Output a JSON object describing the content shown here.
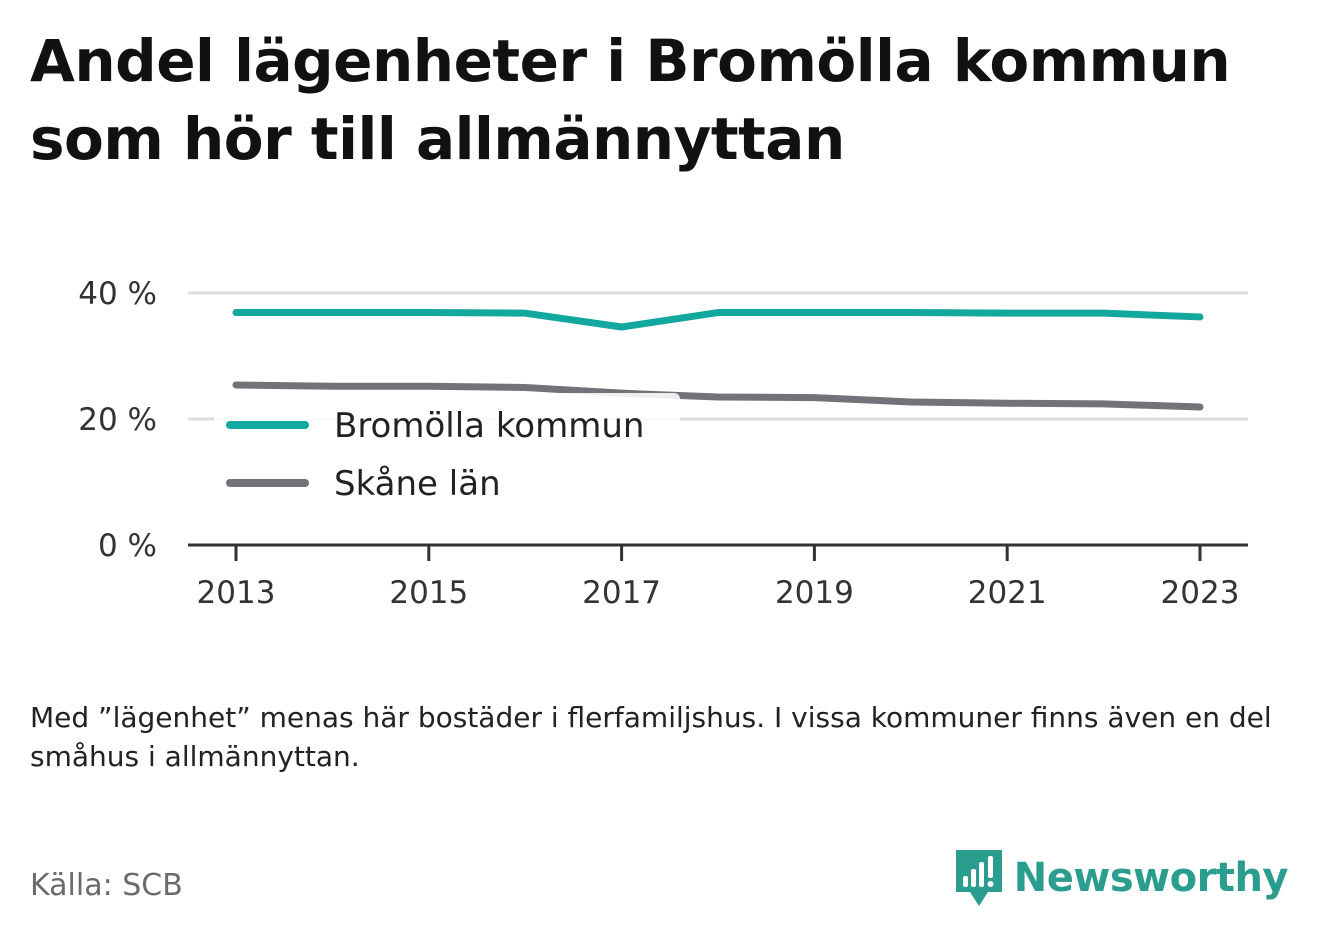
{
  "title": "Andel lägenheter i Bromölla kommun som hör till allmännyttan",
  "note": "Med ”lägenhet” menas här bostäder i flerfamiljshus. I vissa kommuner finns även en del småhus i allmännyttan.",
  "source": "Källa: SCB",
  "brand": {
    "name": "Newsworthy",
    "icon": "newsworthy-logo-icon",
    "color": "#2a9d8f"
  },
  "chart_data": {
    "type": "line",
    "x": [
      2013,
      2014,
      2015,
      2016,
      2017,
      2018,
      2019,
      2020,
      2021,
      2022,
      2023
    ],
    "ylim": [
      0,
      40
    ],
    "yticks": [
      0,
      20,
      40
    ],
    "ytick_labels": [
      "0 %",
      "20 %",
      "40 %"
    ],
    "xticks": [
      2013,
      2015,
      2017,
      2019,
      2021,
      2023
    ],
    "xtick_labels": [
      "2013",
      "2015",
      "2017",
      "2019",
      "2021",
      "2023"
    ],
    "grid": "horizontal",
    "legend_position": "middle-left",
    "series": [
      {
        "name": "Bromölla kommun",
        "color": "#13a89e",
        "values": [
          36.9,
          36.9,
          36.9,
          36.8,
          34.6,
          36.9,
          36.9,
          36.9,
          36.8,
          36.8,
          36.2
        ]
      },
      {
        "name": "Skåne län",
        "color": "#737278",
        "values": [
          25.4,
          25.2,
          25.2,
          25.0,
          24.1,
          23.5,
          23.4,
          22.7,
          22.5,
          22.4,
          21.9
        ]
      }
    ]
  }
}
